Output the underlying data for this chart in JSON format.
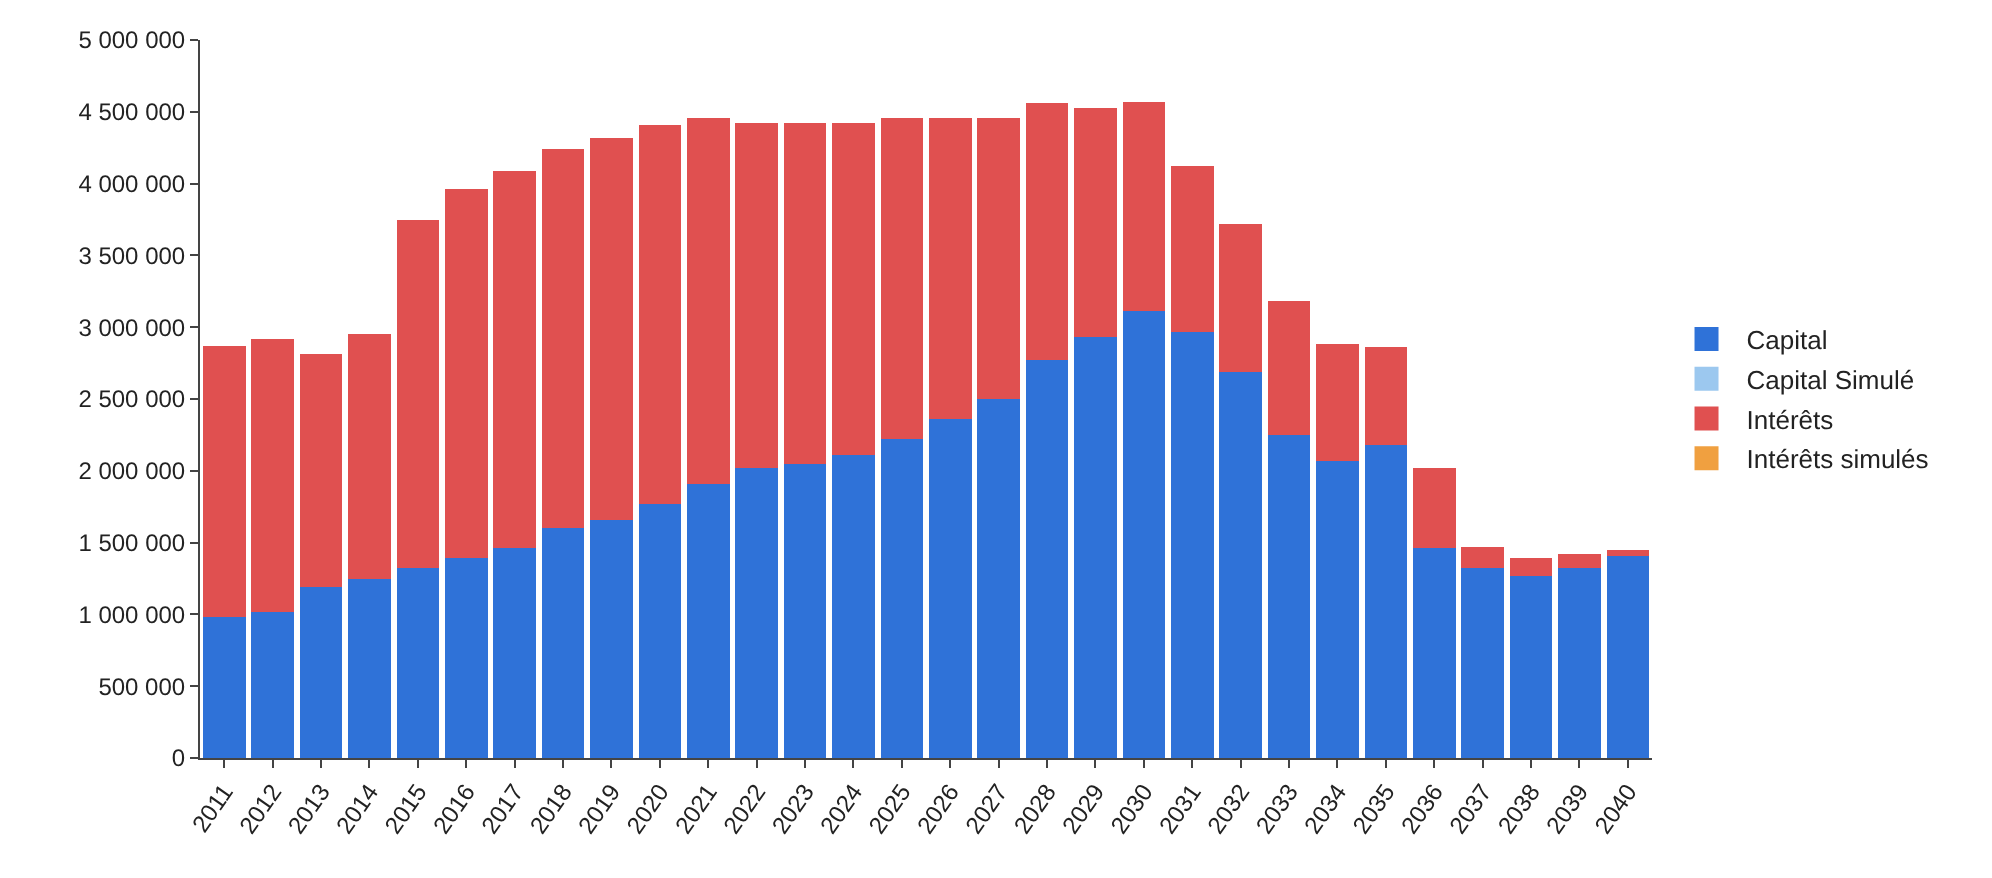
{
  "chart_data": {
    "type": "bar",
    "stacked": true,
    "categories": [
      "2011",
      "2012",
      "2013",
      "2014",
      "2015",
      "2016",
      "2017",
      "2018",
      "2019",
      "2020",
      "2021",
      "2022",
      "2023",
      "2024",
      "2025",
      "2026",
      "2027",
      "2028",
      "2029",
      "2030",
      "2031",
      "2032",
      "2033",
      "2034",
      "2035",
      "2036",
      "2037",
      "2038",
      "2039",
      "2040"
    ],
    "series": [
      {
        "name": "Capital",
        "color": "#2f72d8",
        "values": [
          980000,
          1020000,
          1190000,
          1250000,
          1320000,
          1390000,
          1460000,
          1600000,
          1660000,
          1770000,
          1910000,
          2020000,
          2050000,
          2110000,
          2220000,
          2360000,
          2500000,
          2770000,
          2930000,
          3110000,
          2970000,
          2690000,
          2250000,
          2070000,
          2180000,
          1460000,
          1320000,
          1270000,
          1320000,
          1410000
        ]
      },
      {
        "name": "Capital Simulé",
        "color": "#9cc8ef",
        "values": [
          null,
          null,
          null,
          null,
          null,
          null,
          null,
          null,
          null,
          null,
          null,
          null,
          null,
          null,
          null,
          null,
          null,
          null,
          null,
          null,
          null,
          null,
          null,
          null,
          null,
          null,
          null,
          null,
          null,
          null
        ]
      },
      {
        "name": "Intérêts",
        "color": "#e05050",
        "values": [
          1890000,
          1900000,
          1620000,
          1700000,
          2430000,
          2570000,
          2630000,
          2640000,
          2660000,
          2640000,
          2550000,
          2400000,
          2370000,
          2310000,
          2240000,
          2100000,
          1960000,
          1790000,
          1600000,
          1460000,
          1150000,
          1030000,
          930000,
          810000,
          680000,
          560000,
          150000,
          120000,
          100000,
          40000
        ]
      },
      {
        "name": "Intérêts simulés",
        "color": "#f0a040",
        "values": [
          null,
          null,
          null,
          null,
          null,
          null,
          null,
          null,
          null,
          null,
          null,
          null,
          null,
          null,
          null,
          null,
          null,
          null,
          null,
          null,
          null,
          null,
          null,
          null,
          null,
          null,
          null,
          null,
          null,
          null
        ]
      }
    ],
    "ylim": [
      0,
      5000000
    ],
    "yticks": [
      {
        "value": 0,
        "label": "0"
      },
      {
        "value": 500000,
        "label": "500 000"
      },
      {
        "value": 1000000,
        "label": "1 000 000"
      },
      {
        "value": 1500000,
        "label": "1 500 000"
      },
      {
        "value": 2000000,
        "label": "2 000 000"
      },
      {
        "value": 2500000,
        "label": "2 500 000"
      },
      {
        "value": 3000000,
        "label": "3 000 000"
      },
      {
        "value": 3500000,
        "label": "3 500 000"
      },
      {
        "value": 4000000,
        "label": "4 000 000"
      },
      {
        "value": 4500000,
        "label": "4 500 000"
      },
      {
        "value": 5000000,
        "label": "5 000 000"
      }
    ],
    "legend": "right"
  }
}
